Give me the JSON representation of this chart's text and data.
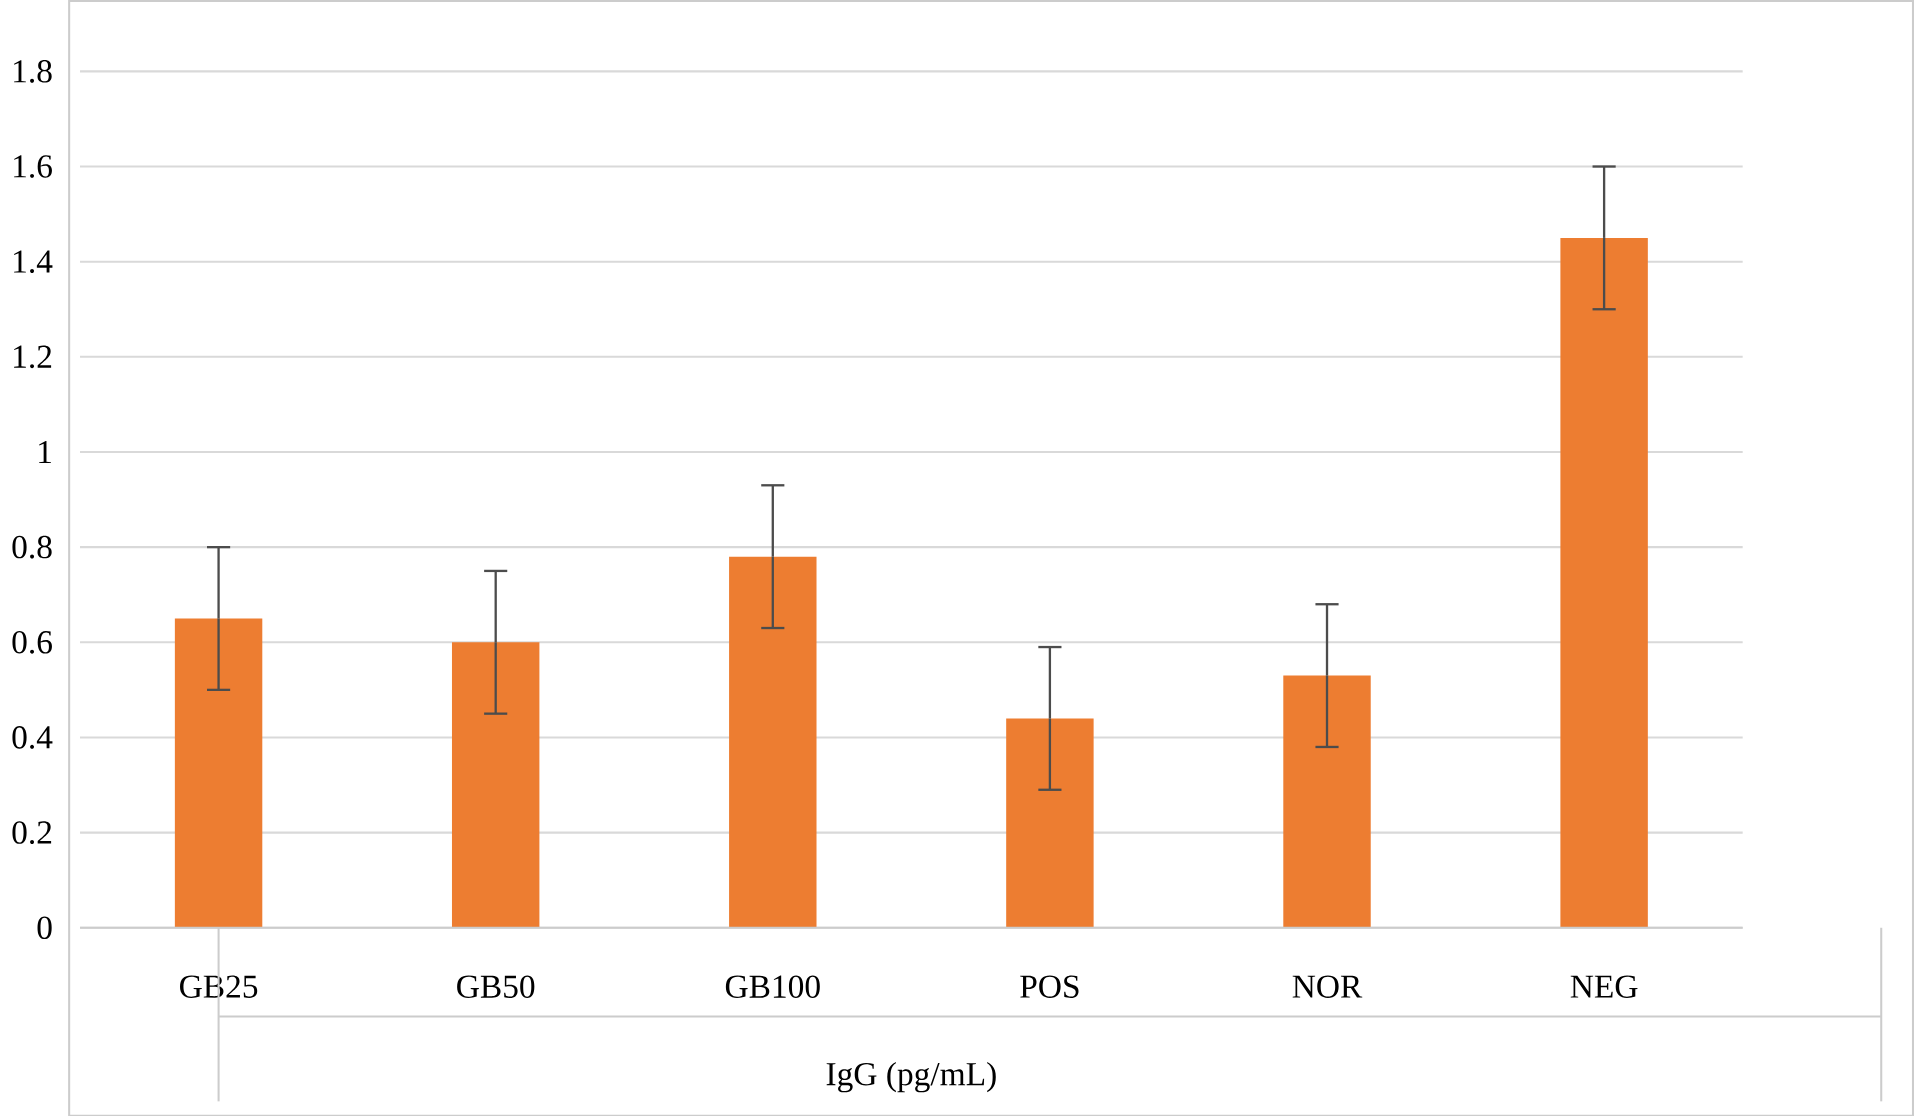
{
  "chart_data": {
    "type": "bar",
    "xlabel": "IgG (pg/mL)",
    "categories": [
      "GB25",
      "GB50",
      "GB100",
      "POS",
      "NOR",
      "NEG"
    ],
    "values": [
      0.65,
      0.6,
      0.78,
      0.44,
      0.53,
      1.45
    ],
    "errors": [
      0.15,
      0.15,
      0.15,
      0.15,
      0.15,
      0.15
    ],
    "color": "#ed7d31",
    "ylim": [
      0,
      1.8
    ],
    "yticks": [
      0,
      0.2,
      0.4,
      0.6,
      0.8,
      1,
      1.2,
      1.4,
      1.6,
      1.8
    ],
    "grid": "y"
  }
}
